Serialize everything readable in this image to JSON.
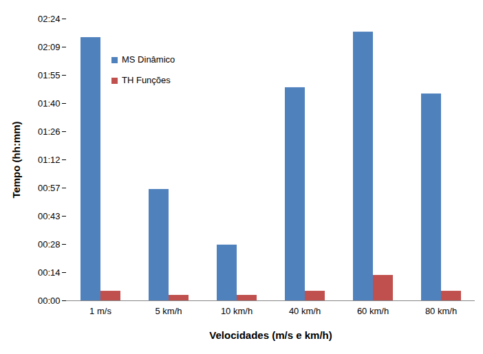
{
  "chart_data": {
    "type": "bar",
    "y_label": "Tempo (hh:mm)",
    "x_label": "Velocidades (m/s e km/h)",
    "categories": [
      "1 m/s",
      "5 km/h",
      "10 km/h",
      "40 km/h",
      "60 km/h",
      "80 km/h"
    ],
    "series": [
      {
        "name": "MS Dinâmico",
        "color": "#4F81BD",
        "values": [
          134.5,
          56.9,
          28.5,
          108.9,
          137.3,
          105.7
        ]
      },
      {
        "name": "TH Funções",
        "color": "#C0504D",
        "values": [
          4.9,
          2.8,
          2.8,
          4.9,
          13.0,
          4.9
        ]
      }
    ],
    "ylim": [
      0,
      144
    ],
    "yticks": [
      {
        "value": 0,
        "label": "00:00"
      },
      {
        "value": 14.4,
        "label": "00:14"
      },
      {
        "value": 28.8,
        "label": "00:28"
      },
      {
        "value": 43.2,
        "label": "00:43"
      },
      {
        "value": 57.6,
        "label": "00:57"
      },
      {
        "value": 72,
        "label": "01:12"
      },
      {
        "value": 86.4,
        "label": "01:26"
      },
      {
        "value": 100.8,
        "label": "01:40"
      },
      {
        "value": 115.2,
        "label": "01:55"
      },
      {
        "value": 129.6,
        "label": "02:09"
      },
      {
        "value": 144,
        "label": "02:24"
      }
    ],
    "legend": "top-left",
    "grid": false
  }
}
